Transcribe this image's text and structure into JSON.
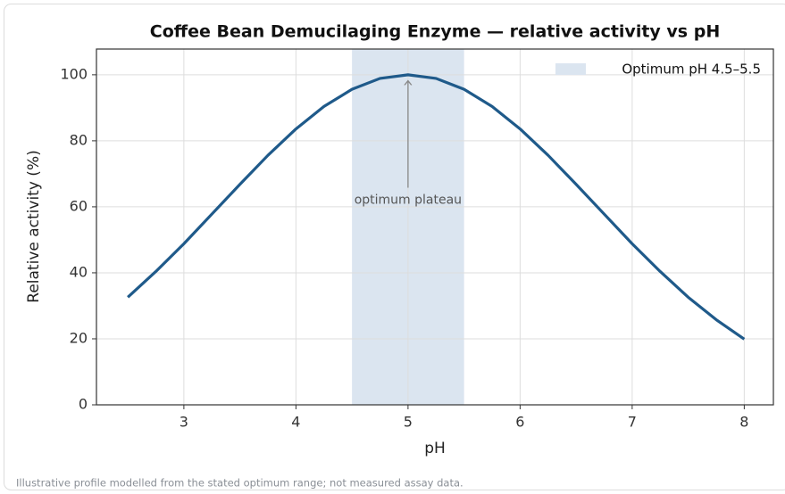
{
  "chart_data": {
    "type": "line",
    "title": "Coffee Bean Demucilaging Enzyme — relative activity vs pH",
    "x_label": "pH",
    "y_label": "Relative activity (%)",
    "x": [
      2.5,
      2.75,
      3.0,
      3.25,
      3.5,
      3.75,
      4.0,
      4.25,
      4.5,
      4.75,
      5.0,
      5.25,
      5.5,
      5.75,
      6.0,
      6.25,
      6.5,
      6.75,
      7.0,
      7.25,
      7.5,
      7.75,
      8.0
    ],
    "series": [
      {
        "color": "#1f5a8a",
        "values": [
          32.6,
          40.4,
          48.8,
          57.8,
          66.8,
          75.6,
          83.6,
          90.4,
          95.6,
          98.9,
          100,
          98.9,
          95.6,
          90.4,
          83.6,
          75.6,
          66.8,
          57.8,
          48.8,
          40.4,
          32.6,
          25.8,
          19.9
        ]
      }
    ],
    "span": {
      "name": "Optimum pH 4.5–5.5",
      "range": [
        4.5,
        5.5
      ],
      "color": "#dbe5f0"
    },
    "annotations": [
      {
        "text": "optimum plateau",
        "xy": [
          5,
          99
        ],
        "xytext": [
          5,
          62
        ]
      }
    ],
    "xlim": [
      2.22,
      8.26
    ],
    "ylim": [
      0,
      107.8
    ],
    "xticks": [
      3,
      4,
      5,
      6,
      7,
      8
    ],
    "yticks": [
      0,
      20,
      40,
      60,
      80,
      100
    ],
    "grid": true,
    "legend": "upper right"
  },
  "footnote": "Illustrative profile modelled from the stated optimum range; not measured assay data."
}
